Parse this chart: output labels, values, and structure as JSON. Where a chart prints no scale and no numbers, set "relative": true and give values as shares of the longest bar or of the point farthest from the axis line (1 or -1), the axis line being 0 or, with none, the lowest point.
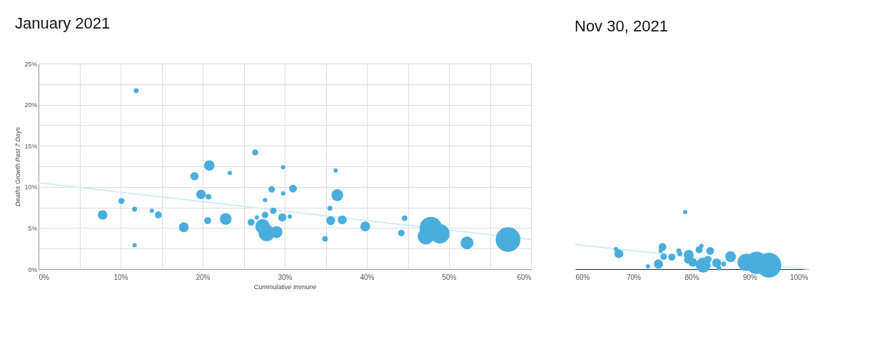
{
  "chart_data": [
    {
      "type": "bubble",
      "title": "January 2021",
      "xlabel": "Cummulative Immune",
      "ylabel": "Deaths Growth Past 7 Days",
      "xlim": [
        0,
        60
      ],
      "ylim": [
        0,
        25
      ],
      "xticks": [
        {
          "value": 0,
          "label": "0%"
        },
        {
          "value": 5,
          "label": null
        },
        {
          "value": 10,
          "label": "10%"
        },
        {
          "value": 15,
          "label": null
        },
        {
          "value": 20,
          "label": "20%"
        },
        {
          "value": 25,
          "label": null
        },
        {
          "value": 30,
          "label": "30%"
        },
        {
          "value": 35,
          "label": null
        },
        {
          "value": 40,
          "label": "40%"
        },
        {
          "value": 45,
          "label": null
        },
        {
          "value": 50,
          "label": "50%"
        },
        {
          "value": 55,
          "label": null
        },
        {
          "value": 60,
          "label": "60%"
        }
      ],
      "yticks": [
        {
          "value": 0,
          "label": "0%"
        },
        {
          "value": 2.5,
          "label": null
        },
        {
          "value": 5,
          "label": "5%"
        },
        {
          "value": 7.5,
          "label": null
        },
        {
          "value": 10,
          "label": "10%"
        },
        {
          "value": 12.5,
          "label": null
        },
        {
          "value": 15,
          "label": "15%"
        },
        {
          "value": 17.5,
          "label": null
        },
        {
          "value": 20,
          "label": "20%"
        },
        {
          "value": 22.5,
          "label": null
        },
        {
          "value": 25,
          "label": "25%"
        }
      ],
      "grid": true,
      "series": [
        {
          "type": "line",
          "color": "#d4ebf7",
          "x": [
            0,
            60
          ],
          "values": [
            10.5,
            3.6
          ]
        },
        {
          "type": "bubble",
          "color": "#4aaedd",
          "x": [
            11.9,
            26.4,
            20.8,
            19.0,
            23.3,
            28.4,
            19.8,
            20.7,
            10.1,
            27.6,
            11.7,
            13.8,
            28.6,
            7.8,
            14.6,
            27.6,
            26.6,
            20.6,
            22.8,
            25.9,
            17.7,
            27.3,
            27.8,
            29.0,
            11.7,
            29.8,
            36.2,
            31.0,
            29.8,
            36.4,
            35.5,
            29.7,
            30.6,
            35.6,
            37.0,
            39.8,
            44.6,
            44.2,
            34.9,
            47.8,
            47.2,
            48.9,
            52.2,
            57.2
          ],
          "values": [
            21.7,
            14.2,
            12.6,
            11.3,
            11.7,
            9.7,
            9.1,
            8.8,
            8.3,
            8.4,
            7.3,
            7.1,
            7.1,
            6.6,
            6.6,
            6.6,
            6.3,
            5.9,
            6.1,
            5.7,
            5.1,
            5.2,
            4.4,
            4.5,
            2.9,
            12.4,
            12.0,
            9.8,
            9.2,
            9.0,
            7.4,
            6.3,
            6.4,
            5.9,
            6.0,
            5.2,
            6.2,
            4.4,
            3.7,
            5.0,
            4.0,
            4.3,
            3.2,
            3.6
          ],
          "sizes": [
            0.04,
            0.06,
            0.18,
            0.11,
            0.03,
            0.07,
            0.15,
            0.05,
            0.06,
            0.03,
            0.04,
            0.03,
            0.07,
            0.15,
            0.08,
            0.07,
            0.03,
            0.08,
            0.23,
            0.08,
            0.16,
            0.35,
            0.44,
            0.23,
            0.03,
            0.03,
            0.03,
            0.1,
            0.03,
            0.23,
            0.04,
            0.11,
            0.03,
            0.13,
            0.13,
            0.16,
            0.05,
            0.07,
            0.05,
            0.82,
            0.44,
            0.62,
            0.27,
            1
          ],
          "marker": "circle"
        }
      ]
    },
    {
      "type": "bubble",
      "title": "Nov 30, 2021",
      "relative": true,
      "tick_labels": "x",
      "xlim": [
        60,
        100
      ],
      "xticks": [
        {
          "value": 60,
          "label": "60%"
        },
        {
          "value": 70,
          "label": "70%"
        },
        {
          "value": 80,
          "label": "80%"
        },
        {
          "value": 90,
          "label": "90%"
        },
        {
          "value": 100,
          "label": "100%"
        }
      ],
      "series": [
        {
          "type": "line",
          "color": "#d4ebf7",
          "x": [
            60,
            100
          ],
          "values": [
            0.43,
            0
          ]
        },
        {
          "type": "bubble",
          "color": "#4aaedd",
          "x": [
            78.9,
            67.0,
            67.5,
            72.5,
            74.3,
            75.0,
            74.7,
            75.2,
            76.6,
            77.8,
            78.0,
            79.5,
            79.3,
            80.2,
            81.3,
            81.7,
            83.2,
            82.0,
            82.8,
            84.3,
            84.7,
            85.5,
            86.7,
            89.4,
            91.2,
            93.3
          ],
          "values": [
            1.0,
            0.35,
            0.27,
            0.05,
            0.09,
            0.39,
            0.32,
            0.22,
            0.21,
            0.32,
            0.27,
            0.25,
            0.16,
            0.12,
            0.34,
            0.41,
            0.32,
            0.07,
            0.17,
            0.11,
            0.02,
            0.09,
            0.22,
            0.12,
            0.11,
            0.07
          ],
          "sizes": [
            0.03,
            0.03,
            0.13,
            0.03,
            0.14,
            0.1,
            0.03,
            0.07,
            0.08,
            0.04,
            0.04,
            0.16,
            0.08,
            0.13,
            0.08,
            0.03,
            0.1,
            0.36,
            0.09,
            0.13,
            0.04,
            0.04,
            0.19,
            0.49,
            0.81,
            1
          ],
          "marker": "circle"
        }
      ]
    }
  ]
}
